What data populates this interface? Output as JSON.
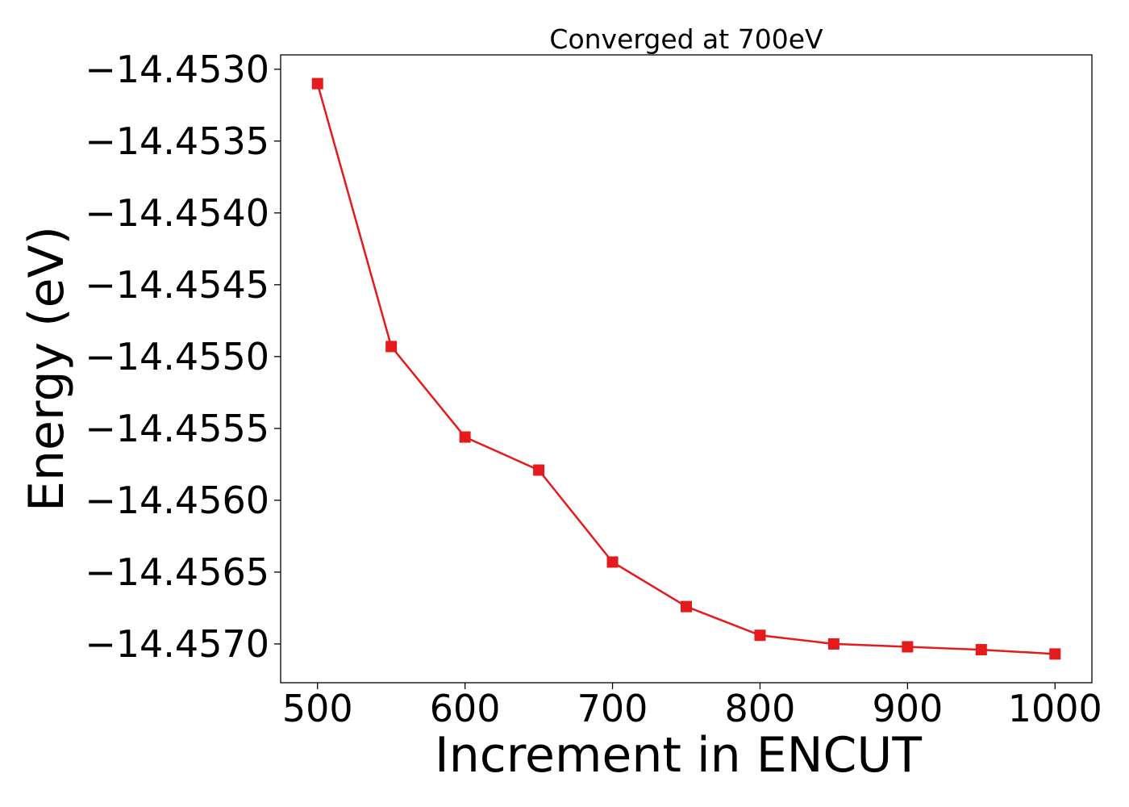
{
  "chart_data": {
    "type": "line",
    "title": "Converged at 700eV",
    "xlabel": "Increment in ENCUT",
    "ylabel": "Energy (eV)",
    "x": [
      500,
      550,
      600,
      650,
      700,
      750,
      800,
      850,
      900,
      950,
      1000
    ],
    "series": [
      {
        "values": [
          -14.4531,
          -14.45493,
          -14.45556,
          -14.45579,
          -14.45643,
          -14.45674,
          -14.45694,
          -14.457,
          -14.45702,
          -14.45704,
          -14.45707
        ],
        "color": "#e41a1c",
        "marker": "square"
      }
    ],
    "xlim": [
      475,
      1025
    ],
    "ylim": [
      -14.45727,
      -14.4529
    ],
    "xticks": [
      500,
      600,
      700,
      800,
      900,
      1000
    ],
    "xtick_labels": [
      "500",
      "600",
      "700",
      "800",
      "900",
      "1000"
    ],
    "yticks": [
      -14.453,
      -14.4535,
      -14.454,
      -14.4545,
      -14.455,
      -14.4555,
      -14.456,
      -14.4565,
      -14.457
    ],
    "ytick_labels": [
      "−14.4530",
      "−14.4535",
      "−14.4540",
      "−14.4545",
      "−14.4550",
      "−14.4555",
      "−14.4560",
      "−14.4565",
      "−14.4570"
    ],
    "grid": false,
    "legend": "none"
  }
}
